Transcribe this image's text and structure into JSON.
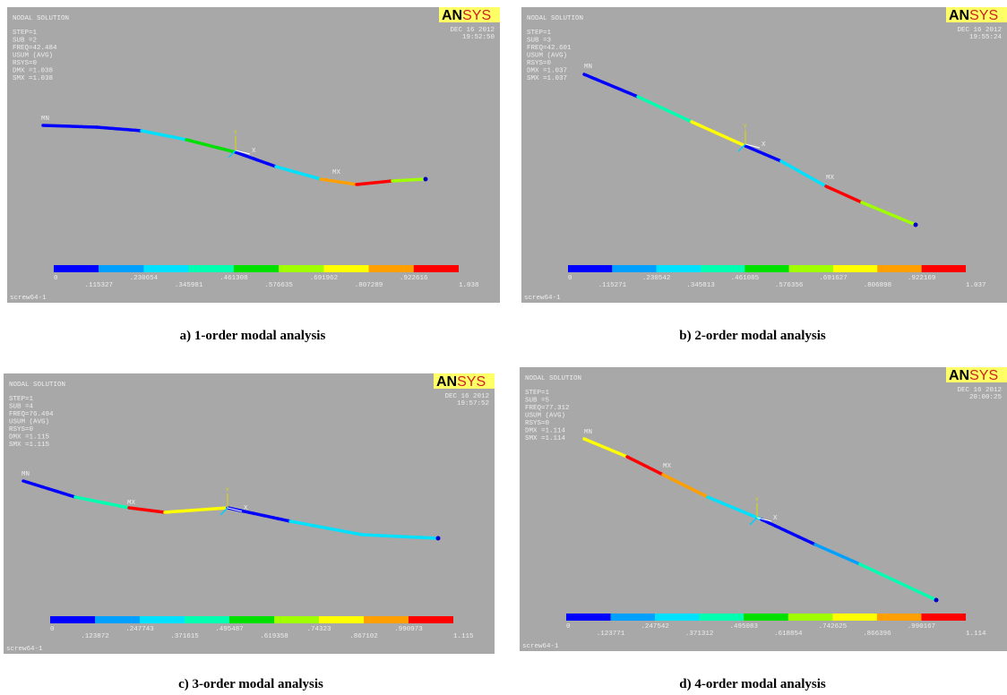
{
  "panels": [
    {
      "header": {
        "title": "NODAL SOLUTION",
        "lines": [
          "STEP=1",
          "SUB =2",
          "FREQ=42.484",
          "USUM      (AVG)",
          "RSYS=0",
          "DMX =1.038",
          "SMX =1.038"
        ]
      },
      "logo_a": "AN",
      "logo_b": "SYS",
      "date": "DEC 16 2012",
      "time": "19:52:50",
      "min_label": "MN",
      "max_label": "MX",
      "axis": [
        "Y",
        "X"
      ],
      "legend": [
        "0",
        ".115327",
        ".230654",
        ".345981",
        ".461308",
        ".576635",
        ".691962",
        ".807289",
        ".922616",
        "1.038"
      ],
      "model": "screw64-1",
      "caption": "a) 1-order modal analysis"
    },
    {
      "header": {
        "title": "NODAL SOLUTION",
        "lines": [
          "STEP=1",
          "SUB =3",
          "FREQ=42.601",
          "USUM      (AVG)",
          "RSYS=0",
          "DMX =1.037",
          "SMX =1.037"
        ]
      },
      "logo_a": "AN",
      "logo_b": "SYS",
      "date": "DEC 16 2012",
      "time": "19:55:24",
      "min_label": "MN",
      "max_label": "MX",
      "axis": [
        "Y",
        "X"
      ],
      "legend": [
        "0",
        ".115271",
        ".230542",
        ".345813",
        ".461085",
        ".576356",
        ".691627",
        ".806898",
        ".922169",
        "1.037"
      ],
      "model": "screw64-1",
      "caption": "b) 2-order modal analysis"
    },
    {
      "header": {
        "title": "NODAL SOLUTION",
        "lines": [
          "STEP=1",
          "SUB =4",
          "FREQ=76.494",
          "USUM      (AVG)",
          "RSYS=0",
          "DMX =1.115",
          "SMX =1.115"
        ]
      },
      "logo_a": "AN",
      "logo_b": "SYS",
      "date": "DEC 16 2012",
      "time": "19:57:52",
      "min_label": "MN",
      "max_label": "MX",
      "axis": [
        "Y",
        "X"
      ],
      "legend": [
        "0",
        ".123872",
        ".247743",
        ".371615",
        ".495487",
        ".619358",
        ".74323",
        ".867102",
        ".990973",
        "1.115"
      ],
      "model": "screw64-1",
      "caption": "c) 3-order modal analysis"
    },
    {
      "header": {
        "title": "NODAL SOLUTION",
        "lines": [
          "STEP=1",
          "SUB =5",
          "FREQ=77.312",
          "USUM      (AVG)",
          "RSYS=0",
          "DMX =1.114",
          "SMX =1.114"
        ]
      },
      "logo_a": "AN",
      "logo_b": "SYS",
      "date": "DEC 16 2012",
      "time": "20:00:25",
      "min_label": "MN",
      "max_label": "MX",
      "axis": [
        "Y",
        "X"
      ],
      "legend": [
        "0",
        ".123771",
        ".247542",
        ".371312",
        ".495083",
        ".618854",
        ".742625",
        ".866396",
        ".990167",
        "1.114"
      ],
      "model": "screw64-1",
      "caption": "d) 4-order modal analysis"
    }
  ]
}
